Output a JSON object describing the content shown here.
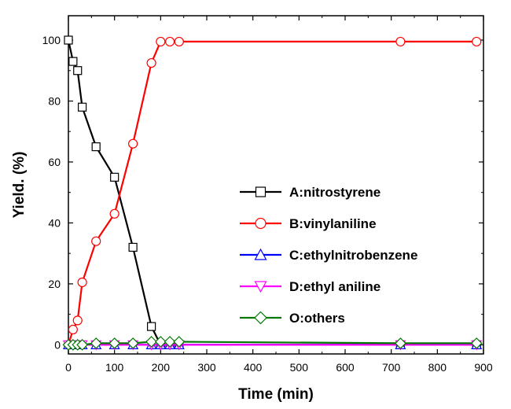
{
  "chart_data": {
    "type": "line",
    "title": "",
    "xlabel": "Time (min)",
    "ylabel": "Yield. (%)",
    "xlim": [
      0,
      900
    ],
    "ylim": [
      -3,
      108
    ],
    "xticks": [
      0,
      100,
      200,
      300,
      400,
      500,
      600,
      700,
      800,
      900
    ],
    "yticks": [
      0,
      20,
      40,
      60,
      80,
      100
    ],
    "grid": false,
    "legend_position": "center-right",
    "series": [
      {
        "name": "A:nitrostyrene",
        "color": "#000000",
        "marker": "square",
        "x": [
          0,
          10,
          20,
          30,
          60,
          100,
          140,
          180,
          200,
          220,
          240,
          720,
          885
        ],
        "y": [
          100,
          93,
          90,
          78,
          65,
          55,
          32,
          6,
          0,
          0,
          0,
          0,
          0
        ]
      },
      {
        "name": "B:vinylaniline",
        "color": "#ff0000",
        "marker": "circle",
        "x": [
          0,
          10,
          20,
          30,
          60,
          100,
          140,
          180,
          200,
          220,
          240,
          720,
          885
        ],
        "y": [
          0,
          5,
          8,
          20.5,
          34,
          43,
          66,
          92.5,
          99.5,
          99.5,
          99.5,
          99.5,
          99.5
        ]
      },
      {
        "name": "C:ethylnitrobenzene",
        "color": "#0000ff",
        "marker": "triangle-up",
        "x": [
          0,
          10,
          20,
          30,
          60,
          100,
          140,
          180,
          200,
          220,
          240,
          720,
          885
        ],
        "y": [
          0,
          0,
          0,
          0,
          0,
          0,
          0,
          0,
          0,
          0,
          0,
          0,
          0
        ]
      },
      {
        "name": "D:ethyl aniline",
        "color": "#ff00ff",
        "marker": "triangle-down",
        "x": [
          0,
          10,
          20,
          30,
          60,
          100,
          140,
          180,
          200,
          220,
          240,
          720,
          885
        ],
        "y": [
          0,
          0,
          0,
          0,
          0,
          0,
          0,
          0,
          0,
          0,
          0,
          0,
          0
        ]
      },
      {
        "name": "O:others",
        "color": "#007700",
        "marker": "diamond",
        "x": [
          0,
          10,
          20,
          30,
          60,
          100,
          140,
          180,
          200,
          220,
          240,
          720,
          885
        ],
        "y": [
          0,
          0,
          0,
          0,
          0.5,
          0.5,
          0.5,
          1,
          1,
          1,
          1,
          0.5,
          0.5
        ]
      }
    ]
  }
}
